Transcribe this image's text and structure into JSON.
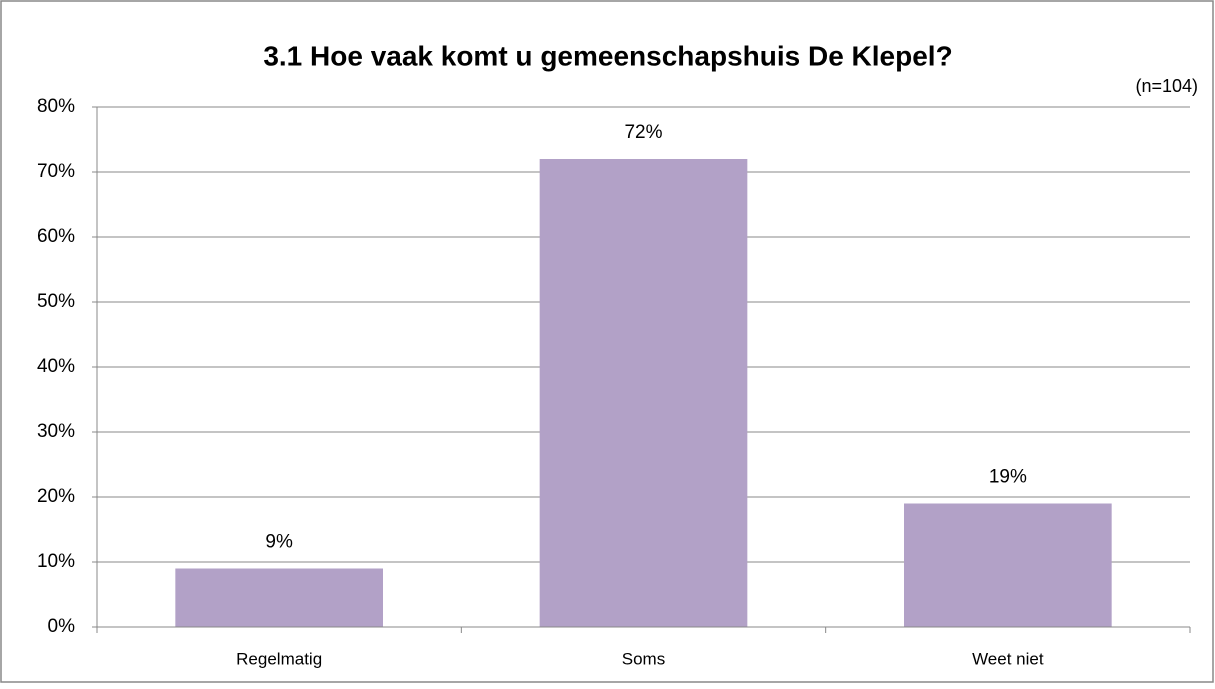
{
  "chart_data": {
    "type": "bar",
    "title": "3.1 Hoe vaak komt u gemeenschapshuis De Klepel?",
    "annotation": "(n=104)",
    "categories": [
      "Regelmatig",
      "Soms",
      "Weet niet"
    ],
    "values": [
      9,
      72,
      19
    ],
    "value_labels": [
      "9%",
      "72%",
      "19%"
    ],
    "color": "#b2a1c7",
    "ylim": [
      0,
      80
    ],
    "yticks": [
      {
        "value": 0,
        "label": "0%"
      },
      {
        "value": 10,
        "label": "10%"
      },
      {
        "value": 20,
        "label": "20%"
      },
      {
        "value": 30,
        "label": "30%"
      },
      {
        "value": 40,
        "label": "40%"
      },
      {
        "value": 50,
        "label": "50%"
      },
      {
        "value": 60,
        "label": "60%"
      },
      {
        "value": 70,
        "label": "70%"
      },
      {
        "value": 80,
        "label": "80%"
      }
    ],
    "grid": true
  }
}
